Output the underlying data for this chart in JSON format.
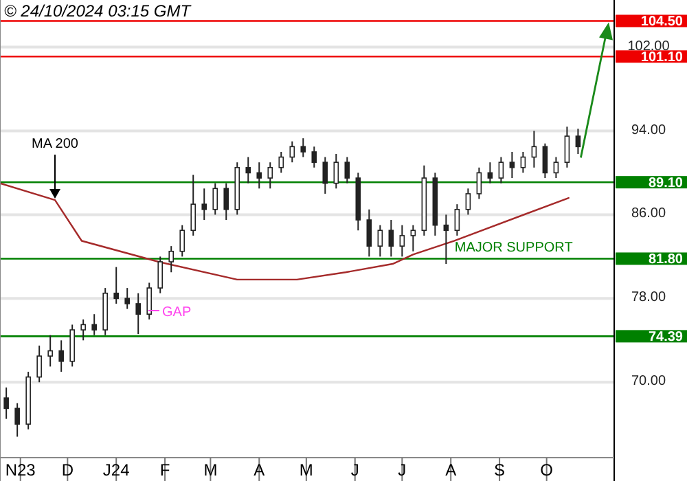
{
  "chart_data": {
    "type": "candlestick",
    "color": "#222222",
    "x": [
      "2023-10-23",
      "2023-10-30",
      "2023-11-06",
      "2023-11-13",
      "2023-11-20",
      "2023-11-27",
      "2023-12-04",
      "2023-12-11",
      "2023-12-18",
      "2023-12-25",
      "2024-01-01",
      "2024-01-08",
      "2024-01-15",
      "2024-01-22",
      "2024-01-29",
      "2024-02-05",
      "2024-02-12",
      "2024-02-19",
      "2024-02-26",
      "2024-03-04",
      "2024-03-11",
      "2024-03-18",
      "2024-03-25",
      "2024-04-01",
      "2024-04-08",
      "2024-04-15",
      "2024-04-22",
      "2024-04-29",
      "2024-05-06",
      "2024-05-13",
      "2024-05-20",
      "2024-05-27",
      "2024-06-03",
      "2024-06-10",
      "2024-06-17",
      "2024-06-24",
      "2024-07-01",
      "2024-07-08",
      "2024-07-15",
      "2024-07-22",
      "2024-07-29",
      "2024-08-05",
      "2024-08-12",
      "2024-08-19",
      "2024-08-26",
      "2024-09-02",
      "2024-09-09",
      "2024-09-16",
      "2024-09-23",
      "2024-09-30",
      "2024-10-07",
      "2024-10-14",
      "2024-10-21"
    ],
    "ohlc": [
      [
        68.5,
        69.5,
        66.5,
        67.5
      ],
      [
        67.5,
        68,
        64.8,
        66
      ],
      [
        66,
        71,
        65.5,
        70.5
      ],
      [
        70.5,
        73.5,
        70,
        72.5
      ],
      [
        72.5,
        74.5,
        71.5,
        73
      ],
      [
        73,
        74,
        71,
        72
      ],
      [
        72,
        75.5,
        71.5,
        75
      ],
      [
        75,
        76,
        74,
        75.5
      ],
      [
        75.5,
        76.5,
        74.5,
        75
      ],
      [
        75,
        79,
        74.5,
        78.5
      ],
      [
        78.5,
        81,
        77.5,
        78
      ],
      [
        78,
        79,
        77,
        77.5
      ],
      [
        77.5,
        78.5,
        74.6,
        76.5
      ],
      [
        76.5,
        79.5,
        76,
        79
      ],
      [
        79,
        82,
        78.5,
        81.5
      ],
      [
        81.5,
        83,
        80.5,
        82.5
      ],
      [
        82.5,
        85,
        82,
        84.5
      ],
      [
        84.5,
        89.8,
        84,
        87
      ],
      [
        87,
        88.5,
        85.5,
        86.5
      ],
      [
        86.5,
        89,
        86,
        88.5
      ],
      [
        88.5,
        89,
        85.5,
        86.5
      ],
      [
        86.5,
        91,
        86,
        90.5
      ],
      [
        90.5,
        91.5,
        89,
        90
      ],
      [
        90,
        91,
        88.5,
        89.5
      ],
      [
        89.5,
        91,
        88.5,
        90.5
      ],
      [
        90.5,
        92,
        90,
        91.5
      ],
      [
        91.5,
        93,
        91,
        92.5
      ],
      [
        92.5,
        93.3,
        91.5,
        92
      ],
      [
        92,
        92.5,
        90.5,
        91
      ],
      [
        91,
        91.5,
        88,
        89
      ],
      [
        89,
        91.8,
        88.5,
        91
      ],
      [
        91,
        91.5,
        89,
        89.5
      ],
      [
        89.5,
        90,
        84.5,
        85.5
      ],
      [
        85.5,
        86.5,
        82,
        83
      ],
      [
        83,
        85,
        82,
        84.5
      ],
      [
        84.5,
        85.5,
        82,
        83
      ],
      [
        83,
        85,
        82,
        84
      ],
      [
        84,
        85,
        82.5,
        84.5
      ],
      [
        84.5,
        90.7,
        84,
        89.5
      ],
      [
        89.5,
        90,
        84,
        85
      ],
      [
        85,
        86,
        81.3,
        84.5
      ],
      [
        84.5,
        87,
        84,
        86.5
      ],
      [
        86.5,
        88.5,
        86,
        88
      ],
      [
        88,
        90.5,
        87.5,
        90
      ],
      [
        90,
        91,
        89,
        89.5
      ],
      [
        89.5,
        91.5,
        89,
        91
      ],
      [
        91,
        92,
        89.5,
        90.5
      ],
      [
        90.5,
        92,
        90,
        91.5
      ],
      [
        91.5,
        94,
        90.5,
        92.5
      ],
      [
        92.5,
        92.8,
        89.5,
        90
      ],
      [
        90,
        91.5,
        89.5,
        91
      ],
      [
        91,
        94.4,
        90.5,
        93.5
      ],
      [
        93.5,
        94.2,
        91.8,
        92.5
      ]
    ],
    "series": [
      {
        "type": "line",
        "name": "MA 200",
        "color": "#a52a2a",
        "x": [
          "2023-10-19",
          "2023-11-23",
          "2023-12-10",
          "2024-01-28",
          "2024-03-18",
          "2024-04-25",
          "2024-05-26",
          "2024-06-25",
          "2024-07-08",
          "2024-08-03",
          "2024-10-15"
        ],
        "values": [
          89,
          87.4,
          83.5,
          81.5,
          79.8,
          79.8,
          80.5,
          81.3,
          82.2,
          83.5,
          87.6
        ]
      }
    ],
    "xlim": [
      "2023-10-19",
      "2024-11-13"
    ],
    "xticks": [
      {
        "value": "2023-11-01",
        "label": "N23"
      },
      {
        "value": "2023-12-01",
        "label": "D"
      },
      {
        "value": "2024-01-01",
        "label": "J24"
      },
      {
        "value": "2024-02-01",
        "label": "F"
      },
      {
        "value": "2024-03-01",
        "label": "M"
      },
      {
        "value": "2024-04-01",
        "label": "A"
      },
      {
        "value": "2024-05-01",
        "label": "M"
      },
      {
        "value": "2024-06-01",
        "label": "J"
      },
      {
        "value": "2024-07-01",
        "label": "J"
      },
      {
        "value": "2024-08-01",
        "label": "A"
      },
      {
        "value": "2024-09-01",
        "label": "S"
      },
      {
        "value": "2024-10-01",
        "label": "O"
      }
    ],
    "ylim": [
      62.8,
      106.5
    ],
    "yticks": [
      {
        "value": 70,
        "label": "70.00"
      },
      {
        "value": 78,
        "label": "78.00"
      },
      {
        "value": 86,
        "label": "86.00"
      },
      {
        "value": 94,
        "label": "94.00"
      },
      {
        "value": 102,
        "label": "102.00"
      }
    ],
    "grid": "y",
    "ref_lines": [
      {
        "axis": "y",
        "value": 104.5,
        "label": "104.50",
        "color": "#ee0000"
      },
      {
        "axis": "y",
        "value": 101.1,
        "label": "101.10",
        "color": "#ee0000"
      },
      {
        "axis": "y",
        "value": 89.1,
        "label": "89.10",
        "color": "#008000"
      },
      {
        "axis": "y",
        "value": 81.8,
        "label": "81.80",
        "color": "#008000"
      },
      {
        "axis": "y",
        "value": 74.39,
        "label": "74.39",
        "color": "#008000"
      }
    ],
    "annotations": [
      "© 24/10/2024 03:15 GMT",
      {
        "text": "MAJOR SUPPORT",
        "x": "2024-09-10",
        "y": 81.8
      },
      "GAP"
    ]
  }
}
